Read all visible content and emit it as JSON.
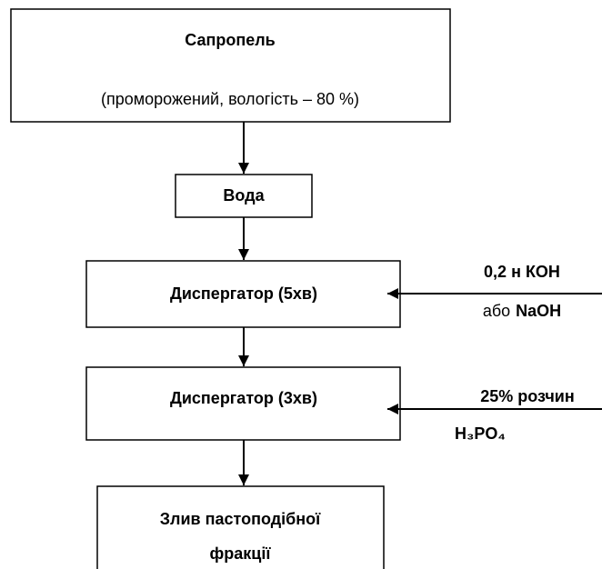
{
  "nodes": [
    {
      "lines": [
        "Сапропель",
        "(проморожений, вологість – 80 %)"
      ]
    },
    {
      "lines": [
        "Вода"
      ]
    },
    {
      "lines": [
        "Диспергатор (5хв)"
      ]
    },
    {
      "lines": [
        "Диспергатор (3хв)"
      ]
    },
    {
      "lines": [
        "Злив пастоподібної",
        "фракції"
      ]
    }
  ],
  "inputs": [
    {
      "reagent": "0,2 н КОН",
      "alt_word": "або",
      "alt": "NaOH"
    },
    {
      "reagent": "25% розчин",
      "formula": "H₃PO₄"
    }
  ]
}
